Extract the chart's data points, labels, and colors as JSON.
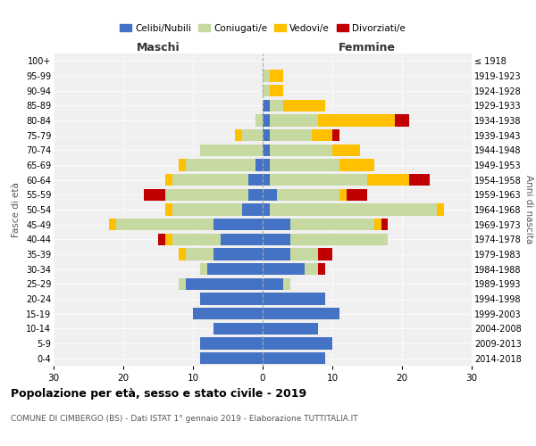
{
  "age_groups": [
    "0-4",
    "5-9",
    "10-14",
    "15-19",
    "20-24",
    "25-29",
    "30-34",
    "35-39",
    "40-44",
    "45-49",
    "50-54",
    "55-59",
    "60-64",
    "65-69",
    "70-74",
    "75-79",
    "80-84",
    "85-89",
    "90-94",
    "95-99",
    "100+"
  ],
  "birth_years": [
    "2014-2018",
    "2009-2013",
    "2004-2008",
    "1999-2003",
    "1994-1998",
    "1989-1993",
    "1984-1988",
    "1979-1983",
    "1974-1978",
    "1969-1973",
    "1964-1968",
    "1959-1963",
    "1954-1958",
    "1949-1953",
    "1944-1948",
    "1939-1943",
    "1934-1938",
    "1929-1933",
    "1924-1928",
    "1919-1923",
    "≤ 1918"
  ],
  "males": {
    "celibe": [
      9,
      9,
      7,
      10,
      9,
      11,
      8,
      7,
      6,
      7,
      3,
      2,
      2,
      1,
      0,
      0,
      0,
      0,
      0,
      0,
      0
    ],
    "coniugato": [
      0,
      0,
      0,
      0,
      0,
      1,
      1,
      4,
      7,
      14,
      10,
      12,
      11,
      10,
      9,
      3,
      1,
      0,
      0,
      0,
      0
    ],
    "vedovo": [
      0,
      0,
      0,
      0,
      0,
      0,
      0,
      1,
      1,
      1,
      1,
      0,
      1,
      1,
      0,
      1,
      0,
      0,
      0,
      0,
      0
    ],
    "divorziato": [
      0,
      0,
      0,
      0,
      0,
      0,
      0,
      0,
      1,
      0,
      0,
      3,
      0,
      0,
      0,
      0,
      0,
      0,
      0,
      0,
      0
    ]
  },
  "females": {
    "nubile": [
      9,
      10,
      8,
      11,
      9,
      3,
      6,
      4,
      4,
      4,
      1,
      2,
      1,
      1,
      1,
      1,
      1,
      1,
      0,
      0,
      0
    ],
    "coniugata": [
      0,
      0,
      0,
      0,
      0,
      1,
      2,
      4,
      14,
      12,
      24,
      9,
      14,
      10,
      9,
      6,
      7,
      2,
      1,
      1,
      0
    ],
    "vedova": [
      0,
      0,
      0,
      0,
      0,
      0,
      0,
      0,
      0,
      1,
      1,
      1,
      6,
      5,
      4,
      3,
      11,
      6,
      2,
      2,
      0
    ],
    "divorziata": [
      0,
      0,
      0,
      0,
      0,
      0,
      1,
      2,
      0,
      1,
      0,
      3,
      3,
      0,
      0,
      1,
      2,
      0,
      0,
      0,
      0
    ]
  },
  "colors": {
    "celibe": "#4472c4",
    "coniugato": "#c5d9a0",
    "vedovo": "#ffc000",
    "divorziato": "#c00000"
  },
  "title": "Popolazione per età, sesso e stato civile - 2019",
  "subtitle": "COMUNE DI CIMBERGO (BS) - Dati ISTAT 1° gennaio 2019 - Elaborazione TUTTITALIA.IT",
  "xlabel_left": "Maschi",
  "xlabel_right": "Femmine",
  "ylabel_left": "Fasce di età",
  "ylabel_right": "Anni di nascita",
  "xlim": 30,
  "legend_labels": [
    "Celibi/Nubili",
    "Coniugati/e",
    "Vedovi/e",
    "Divorziati/e"
  ],
  "background_color": "#ffffff",
  "plot_bg_color": "#f0f0f0",
  "grid_color": "#cccccc"
}
